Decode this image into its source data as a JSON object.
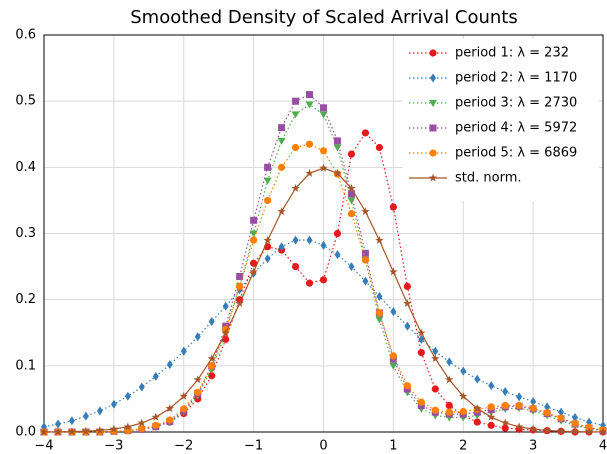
{
  "chart_data": {
    "type": "line",
    "title": "Smoothed Density of Scaled Arrival Counts",
    "x": [
      -4,
      -3.8,
      -3.6,
      -3.4,
      -3.2,
      -3,
      -2.8,
      -2.6,
      -2.4,
      -2.2,
      -2,
      -1.8,
      -1.6,
      -1.4,
      -1.2,
      -1,
      -0.8,
      -0.6,
      -0.4,
      -0.2,
      0,
      0.2,
      0.4,
      0.6,
      0.8,
      1,
      1.2,
      1.4,
      1.6,
      1.8,
      2,
      2.2,
      2.4,
      2.6,
      2.8,
      3,
      3.2,
      3.4,
      3.6,
      3.8,
      4
    ],
    "series": [
      {
        "name": "period 1: λ = 232",
        "color": "#e41a1c",
        "marker": "circle",
        "dash": "dotted",
        "values": [
          0,
          0,
          0,
          0,
          0,
          0.001,
          0.002,
          0.004,
          0.008,
          0.015,
          0.028,
          0.05,
          0.085,
          0.14,
          0.2,
          0.255,
          0.28,
          0.275,
          0.25,
          0.225,
          0.23,
          0.3,
          0.42,
          0.452,
          0.43,
          0.34,
          0.22,
          0.12,
          0.065,
          0.04,
          0.025,
          0.015,
          0.01,
          0.006,
          0.004,
          0.003,
          0.002,
          0.001,
          0,
          0,
          0
        ]
      },
      {
        "name": "period 2: λ = 1170",
        "color": "#377eb8",
        "marker": "diamond",
        "dash": "dotted",
        "values": [
          0.008,
          0.012,
          0.017,
          0.024,
          0.032,
          0.042,
          0.054,
          0.068,
          0.084,
          0.102,
          0.122,
          0.144,
          0.167,
          0.19,
          0.215,
          0.24,
          0.262,
          0.28,
          0.29,
          0.29,
          0.282,
          0.268,
          0.25,
          0.228,
          0.205,
          0.182,
          0.16,
          0.14,
          0.122,
          0.106,
          0.092,
          0.08,
          0.07,
          0.061,
          0.053,
          0.046,
          0.038,
          0.03,
          0.022,
          0.015,
          0.01
        ]
      },
      {
        "name": "period 3: λ = 2730",
        "color": "#4daf4a",
        "marker": "triangle",
        "dash": "dotted",
        "values": [
          0,
          0,
          0,
          0,
          0,
          0.001,
          0.002,
          0.004,
          0.008,
          0.015,
          0.03,
          0.055,
          0.095,
          0.15,
          0.22,
          0.3,
          0.38,
          0.44,
          0.48,
          0.495,
          0.48,
          0.43,
          0.35,
          0.26,
          0.17,
          0.1,
          0.06,
          0.035,
          0.025,
          0.022,
          0.022,
          0.025,
          0.03,
          0.035,
          0.036,
          0.032,
          0.025,
          0.017,
          0.01,
          0.005,
          0.002
        ]
      },
      {
        "name": "period 4: λ = 5972",
        "color": "#984ea3",
        "marker": "square",
        "dash": "dotted",
        "values": [
          0,
          0,
          0,
          0,
          0,
          0.001,
          0.002,
          0.004,
          0.008,
          0.016,
          0.032,
          0.058,
          0.1,
          0.16,
          0.235,
          0.32,
          0.4,
          0.46,
          0.5,
          0.51,
          0.49,
          0.44,
          0.36,
          0.27,
          0.18,
          0.11,
          0.065,
          0.04,
          0.03,
          0.027,
          0.027,
          0.03,
          0.034,
          0.038,
          0.039,
          0.035,
          0.028,
          0.02,
          0.012,
          0.006,
          0.002
        ]
      },
      {
        "name": "period 5: λ = 6869",
        "color": "#ff7f00",
        "marker": "circle",
        "dash": "dotted",
        "values": [
          0,
          0,
          0,
          0,
          0,
          0.001,
          0.002,
          0.005,
          0.01,
          0.018,
          0.035,
          0.06,
          0.1,
          0.155,
          0.22,
          0.29,
          0.35,
          0.4,
          0.43,
          0.435,
          0.425,
          0.39,
          0.33,
          0.26,
          0.18,
          0.115,
          0.07,
          0.045,
          0.033,
          0.03,
          0.031,
          0.034,
          0.038,
          0.04,
          0.04,
          0.036,
          0.029,
          0.021,
          0.013,
          0.007,
          0.003
        ]
      },
      {
        "name": "std. norm.",
        "color": "#a65628",
        "marker": "star",
        "dash": "solid",
        "values": [
          0.0001,
          0.0003,
          0.0006,
          0.0012,
          0.0024,
          0.0044,
          0.0079,
          0.0136,
          0.0224,
          0.0355,
          0.054,
          0.079,
          0.1109,
          0.1497,
          0.1942,
          0.242,
          0.2897,
          0.3332,
          0.3683,
          0.391,
          0.3989,
          0.391,
          0.3683,
          0.3332,
          0.2897,
          0.242,
          0.1942,
          0.1497,
          0.1109,
          0.079,
          0.054,
          0.0355,
          0.0224,
          0.0136,
          0.0079,
          0.0044,
          0.0024,
          0.0012,
          0.0006,
          0.0003,
          0.0001
        ]
      }
    ],
    "xlim": [
      -4,
      4
    ],
    "xticks": [
      {
        "value": -4,
        "label": "−4"
      },
      {
        "value": -3,
        "label": "−3"
      },
      {
        "value": -2,
        "label": "−2"
      },
      {
        "value": -1,
        "label": "−1"
      },
      0,
      1,
      2,
      3,
      4
    ],
    "ylim": [
      0,
      0.6
    ],
    "yticks": [
      {
        "value": 0,
        "label": "0.0"
      },
      0.1,
      0.2,
      0.3,
      0.4,
      0.5,
      0.6
    ],
    "grid": true,
    "legend": "upper right"
  }
}
